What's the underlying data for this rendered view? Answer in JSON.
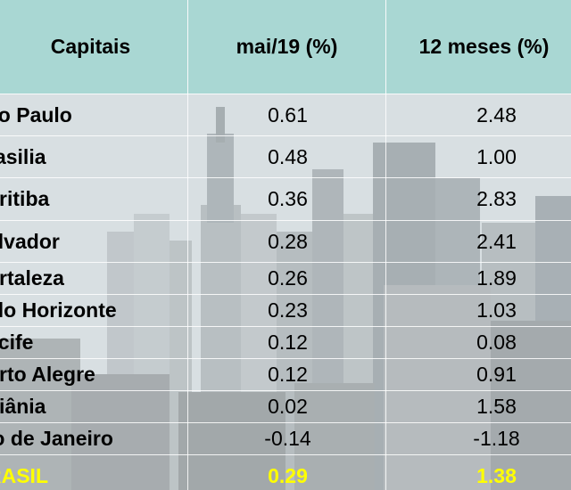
{
  "table": {
    "headers": [
      "Capitais",
      "mai/19 (%)",
      "12 meses (%)"
    ],
    "rows": [
      {
        "city": "ão Paulo",
        "mai19": "0.61",
        "m12": "2.48"
      },
      {
        "city": "rasilia",
        "mai19": "0.48",
        "m12": "1.00"
      },
      {
        "city": "uritiba",
        "mai19": "0.36",
        "m12": "2.83"
      },
      {
        "city": "alvador",
        "mai19": "0.28",
        "m12": "2.41"
      },
      {
        "city": "ortaleza",
        "mai19": "0.26",
        "m12": "1.89"
      },
      {
        "city": "elo Horizonte",
        "mai19": "0.23",
        "m12": "1.03"
      },
      {
        "city": "ecife",
        "mai19": "0.12",
        "m12": "0.08"
      },
      {
        "city": "orto Alegre",
        "mai19": "0.12",
        "m12": "0.91"
      },
      {
        "city": "oiânia",
        "mai19": "0.02",
        "m12": "1.58"
      },
      {
        "city": "io de Janeiro",
        "mai19": "-0.14",
        "m12": "-1.18"
      }
    ],
    "total": {
      "city": "RASIL",
      "mai19": "0.29",
      "m12": "1.38"
    }
  },
  "colors": {
    "header_bg": "#a2d6d0",
    "total_text": "#ffff00",
    "grid_lines": "#ffffff"
  },
  "background": {
    "icon": "city-skyline-photo"
  }
}
